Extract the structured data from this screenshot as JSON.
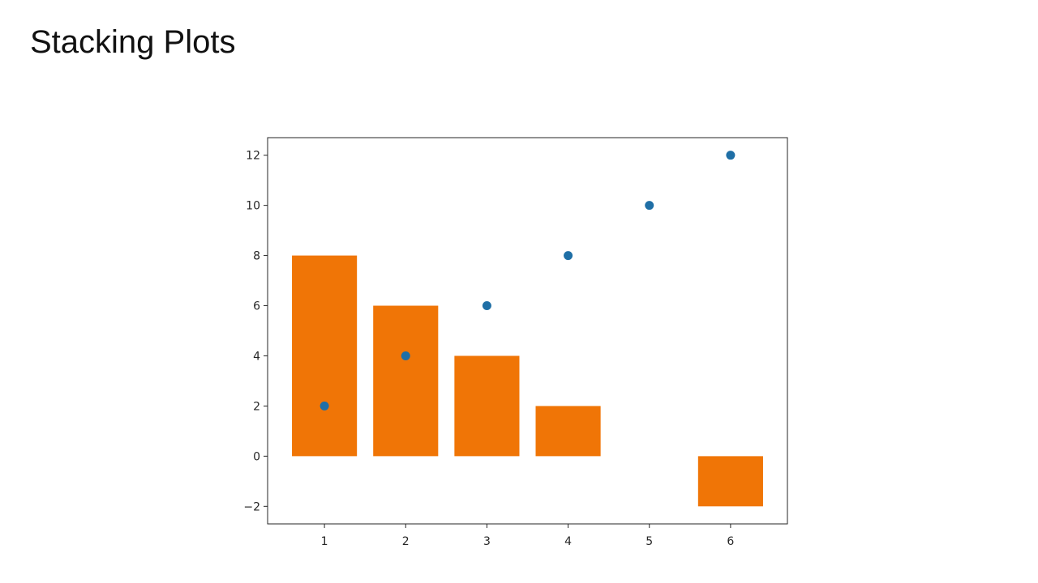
{
  "slide": {
    "title": "Stacking Plots"
  },
  "colors": {
    "bar": "#f07506",
    "scatter": "#1f6fa6",
    "axes": "#262626"
  },
  "chart_data": {
    "type": "bar",
    "title": "",
    "xlabel": "",
    "ylabel": "",
    "xlim": [
      0.3,
      6.7
    ],
    "ylim": [
      -2.7,
      12.7
    ],
    "grid": false,
    "x_ticks": [
      1,
      2,
      3,
      4,
      5,
      6
    ],
    "y_ticks": [
      -2,
      0,
      2,
      4,
      6,
      8,
      10,
      12
    ],
    "series": [
      {
        "kind": "bar",
        "x": [
          1,
          2,
          3,
          4,
          5,
          6
        ],
        "values": [
          8,
          6,
          4,
          2,
          0,
          -2
        ],
        "bar_width": 0.8
      },
      {
        "kind": "scatter",
        "x": [
          1,
          2,
          3,
          4,
          5,
          6
        ],
        "values": [
          2,
          4,
          6,
          8,
          10,
          12
        ]
      }
    ]
  }
}
